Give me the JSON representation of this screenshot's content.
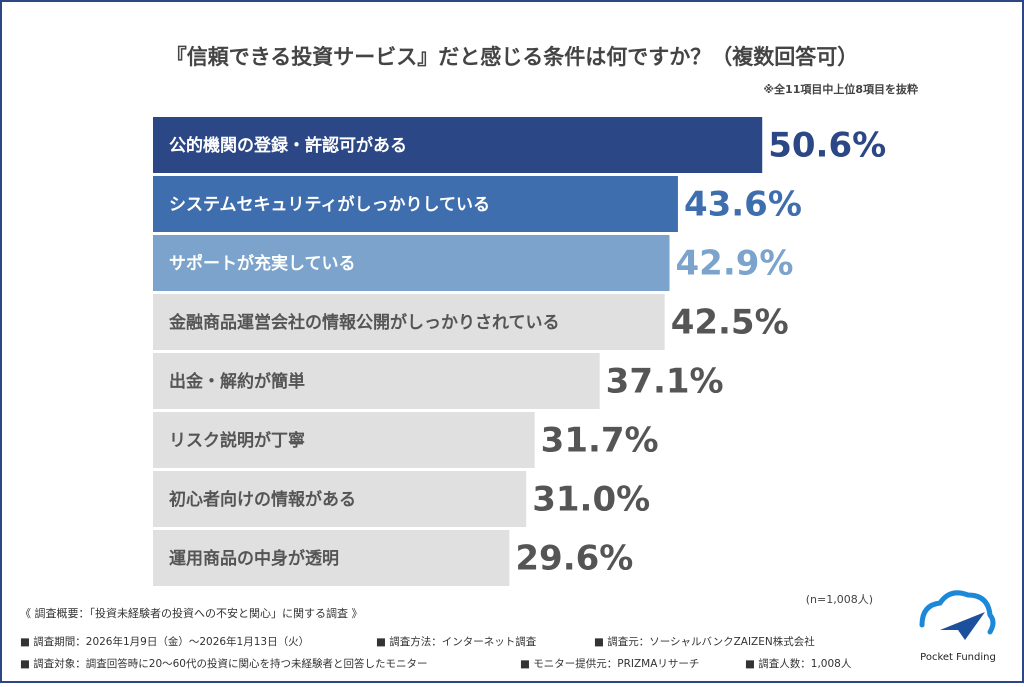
{
  "chart_data": {
    "type": "bar",
    "orientation": "horizontal",
    "title": "『信頼できる投資サービス』だと感じる条件は何ですか？（複数回答可）",
    "note": "※全11項目中上位8項目を抜粋",
    "sample_note": "(n=1,008人)",
    "categories": [
      "公的機関の登録・許認可がある",
      "システムセキュリティがしっかりしている",
      "サポートが充実している",
      "金融商品運営会社の情報公開がしっかりされている",
      "出金・解約が簡単",
      "リスク説明が丁寧",
      "初心者向けの情報がある",
      "運用商品の中身が透明"
    ],
    "values": [
      50.6,
      43.6,
      42.9,
      42.5,
      37.1,
      31.7,
      31.0,
      29.6
    ],
    "value_labels": [
      "50.6%",
      "43.6%",
      "42.9%",
      "42.5%",
      "37.1%",
      "31.7%",
      "31.0%",
      "29.6%"
    ],
    "colors": [
      "#2b4785",
      "#3f6eae",
      "#7ba3cb",
      "#e0e0e0",
      "#e0e0e0",
      "#e0e0e0",
      "#e0e0e0",
      "#e0e0e0"
    ],
    "value_label_colors": [
      "#2b4785",
      "#3f6eae",
      "#7ba3cb",
      "#555555",
      "#555555",
      "#555555",
      "#555555",
      "#555555"
    ],
    "category_label_colors": [
      "#ffffff",
      "#ffffff",
      "#ffffff",
      "#555555",
      "#555555",
      "#555555",
      "#555555",
      "#555555"
    ]
  },
  "footer": {
    "heading": "《 調査概要：「投資未経験者の投資への不安と関心」に関する調査 》",
    "row1": [
      "■ 調査期間：2026年1月9日（金）～2026年1月13日（火）",
      "■ 調査方法：インターネット調査",
      "■ 調査元：ソーシャルバンクZAIZEN株式会社"
    ],
    "row2": [
      "■ 調査対象：調査回答時に20～60代の投資に関心を持つ未経験者と回答したモニター",
      "■ モニター提供元：PRIZMAリサーチ",
      "■ 調査人数：1,008人"
    ]
  },
  "logo": "Pocket Funding"
}
